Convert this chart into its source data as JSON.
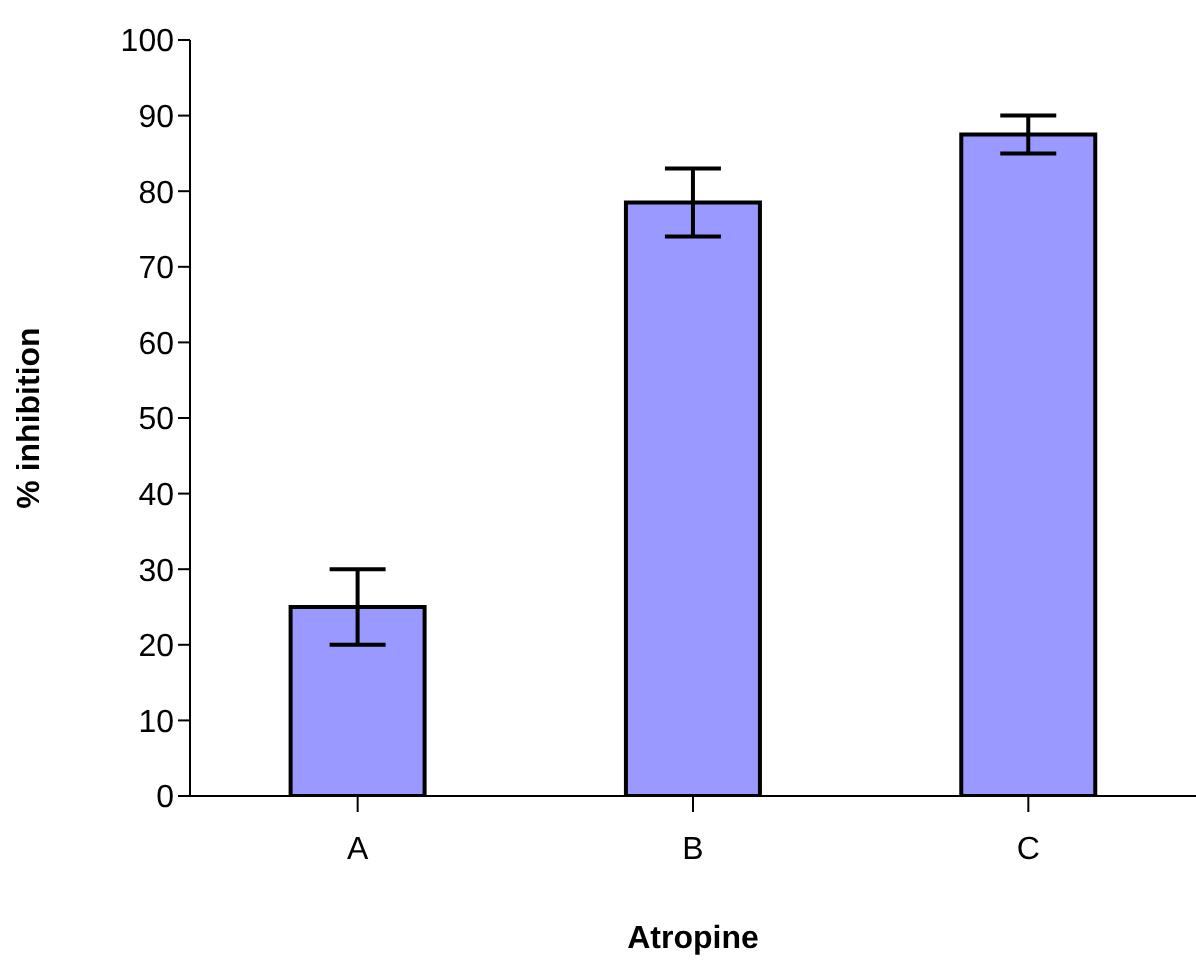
{
  "chart_data": {
    "type": "bar",
    "xlabel": "Atropine",
    "ylabel": "% inhibition",
    "categories": [
      "A",
      "B",
      "C"
    ],
    "values": [
      25,
      78.5,
      87.5
    ],
    "color": "#9999ff",
    "errors": [
      [
        20,
        30
      ],
      [
        74,
        83
      ],
      [
        85,
        90
      ]
    ],
    "ylim": [
      0,
      100
    ],
    "yticks": [
      0,
      10,
      20,
      30,
      40,
      50,
      60,
      70,
      80,
      90,
      100
    ],
    "grid": false,
    "legend": false
  }
}
